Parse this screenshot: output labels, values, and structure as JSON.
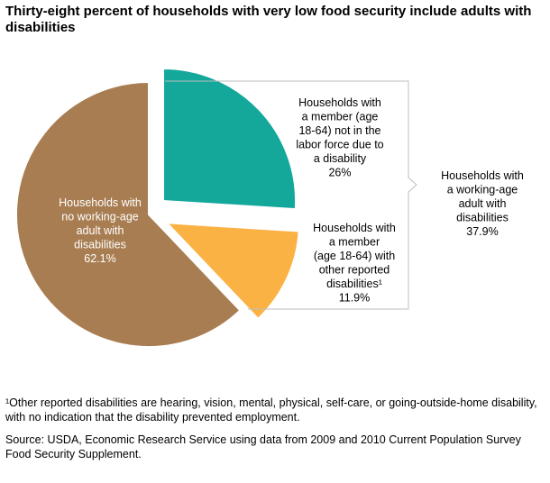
{
  "chart_data": {
    "type": "pie",
    "title": "Thirty-eight percent of households with very low food security include adults with disabilities",
    "slices": [
      {
        "name": "Households with a member (age 18-64) not in the labor force due to a disability",
        "label_lines": [
          "Households with",
          "a member (age",
          "18-64) not in the",
          "labor force due to",
          "a disability",
          "26%"
        ],
        "value": 26,
        "color": "#14a89b",
        "exploded": true
      },
      {
        "name": "Households with a member (age 18-64) with other reported disabilities",
        "label_lines": [
          "Households with",
          "a member",
          "(age 18-64) with",
          "other reported",
          "disabilities¹",
          "11.9%"
        ],
        "value": 11.9,
        "color": "#fbb244",
        "exploded": true
      },
      {
        "name": "Households with no working-age adult with disabilities",
        "label_lines": [
          "Households with",
          "no working-age",
          "adult with",
          "disabilities",
          "62.1%"
        ],
        "value": 62.1,
        "color": "#a87d52",
        "exploded": false
      }
    ],
    "group_annotation": {
      "lines": [
        "Households with",
        "a working-age",
        "adult with",
        "disabilities",
        "37.9%"
      ],
      "value": 37.9
    }
  },
  "notes": {
    "footnote": "¹Other reported disabilities are hearing, vision, mental, physical, self-care, or going-outside-home disability, with no indication that the disability prevented employment.",
    "source": "Source: USDA, Economic Research Service using data from 2009 and 2010 Current Population Survey Food Security Supplement."
  }
}
